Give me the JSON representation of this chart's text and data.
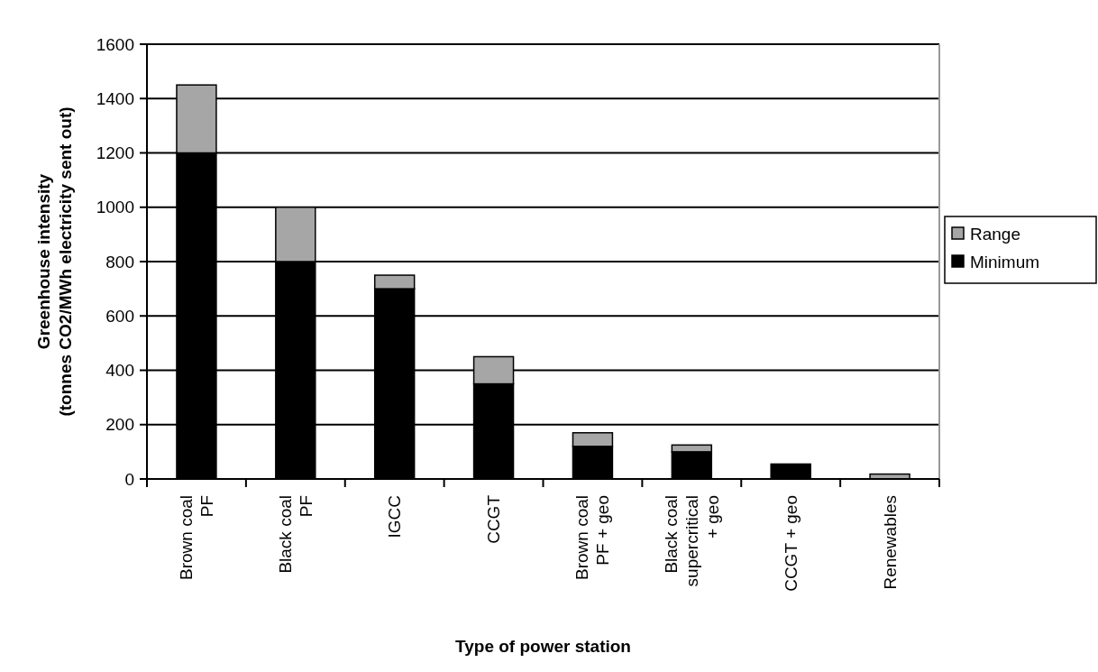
{
  "chart_data": {
    "type": "bar",
    "stacked": true,
    "xlabel": "Type of power station",
    "ylabel": "Greenhouse intensity\n(tonnes CO2/MWh electricity sent out)",
    "categories": [
      "Brown coal\nPF",
      "Black coal\nPF",
      "IGCC",
      "CCGT",
      "Brown coal\nPF + geo",
      "Black coal\nsupercritical\n+ geo",
      "CCGT + geo",
      "Renewables"
    ],
    "series": [
      {
        "name": "Minimum",
        "color": "#000000",
        "values": [
          1200,
          800,
          700,
          350,
          120,
          100,
          55,
          0
        ]
      },
      {
        "name": "Range",
        "color": "#a6a6a6",
        "values": [
          250,
          200,
          50,
          100,
          50,
          25,
          0,
          18
        ]
      }
    ],
    "ylim": [
      0,
      1600
    ],
    "yticks": [
      0,
      200,
      400,
      600,
      800,
      1000,
      1200,
      1400,
      1600
    ],
    "grid": "y",
    "legend": "right"
  }
}
